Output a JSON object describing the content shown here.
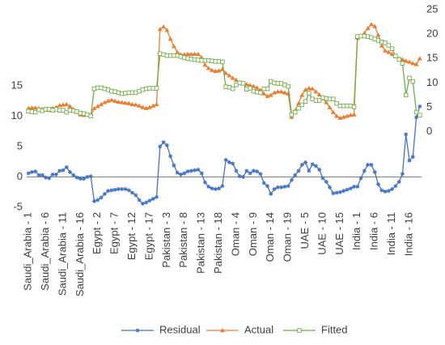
{
  "chart_data": {
    "type": "line",
    "categories": [
      "Saudi_Arabia - 1",
      null,
      null,
      null,
      null,
      "Saudi_Arabia - 6",
      null,
      null,
      null,
      null,
      "Saudi_Arabia - 11",
      null,
      null,
      null,
      null,
      "Saudi_Arabia - 16",
      null,
      null,
      null,
      null,
      "Egypt - 2",
      null,
      null,
      null,
      null,
      "Egypt - 7",
      null,
      null,
      null,
      null,
      "Egypt - 12",
      null,
      null,
      null,
      null,
      "Egypt - 17",
      null,
      null,
      null,
      null,
      "Pakistan - 3",
      null,
      null,
      null,
      null,
      "Pakistan - 8",
      null,
      null,
      null,
      null,
      "Pakistan - 13",
      null,
      null,
      null,
      null,
      "Pakistan - 18",
      null,
      null,
      null,
      null,
      "Oman - 4",
      null,
      null,
      null,
      null,
      "Oman - 9",
      null,
      null,
      null,
      null,
      "Oman - 14",
      null,
      null,
      null,
      null,
      "Oman - 19",
      null,
      null,
      null,
      null,
      "UAE - 5",
      null,
      null,
      null,
      null,
      "UAE - 10",
      null,
      null,
      null,
      null,
      "UAE - 15",
      null,
      null,
      null,
      null,
      "India - 1",
      null,
      null,
      null,
      null,
      "India - 6",
      null,
      null,
      null,
      null,
      "India - 11",
      null,
      null,
      null,
      null,
      "India - 16",
      null,
      null,
      null
    ],
    "series": [
      {
        "name": "Residual",
        "color": "#4472c4",
        "marker": "star",
        "values": [
          0.6,
          0.8,
          0.9,
          0.3,
          0.3,
          -0.1,
          -0.2,
          0.4,
          0.4,
          1.0,
          1.1,
          1.6,
          0.8,
          0.3,
          -0.1,
          -0.3,
          -0.3,
          0.0,
          0.1,
          -4.0,
          -3.8,
          -3.4,
          -2.8,
          -2.3,
          -2.2,
          -2.1,
          -2.0,
          -2.0,
          -2.0,
          -2.2,
          -2.6,
          -3.0,
          -3.8,
          -4.4,
          -4.2,
          -3.9,
          -3.6,
          -3.3,
          5.0,
          5.7,
          5.2,
          3.4,
          1.9,
          0.7,
          0.4,
          0.6,
          0.9,
          1.0,
          1.1,
          1.2,
          0.6,
          -0.9,
          -1.6,
          -1.9,
          -2.0,
          -1.9,
          -1.5,
          2.8,
          2.4,
          2.2,
          1.0,
          0.1,
          0.0,
          1.0,
          0.6,
          1.0,
          0.9,
          0.5,
          -1.0,
          -1.5,
          -2.8,
          -2.0,
          -1.7,
          -1.7,
          -1.6,
          -1.5,
          -0.5,
          0.3,
          1.0,
          2.0,
          2.4,
          1.0,
          2.1,
          1.8,
          1.2,
          -0.2,
          -0.8,
          -1.7,
          -2.7,
          -2.6,
          -2.5,
          -2.3,
          -2.1,
          -1.9,
          -1.6,
          -1.6,
          -0.2,
          1.0,
          2.0,
          2.0,
          0.8,
          -1.2,
          -2.2,
          -2.4,
          -2.3,
          -2.0,
          -1.5,
          -0.8,
          0.5,
          7.0,
          2.7,
          3.3,
          9.8,
          11.6
        ]
      },
      {
        "name": "Actual",
        "color": "#ed7d31",
        "marker": "triangle",
        "axis": "y2",
        "values": [
          4.8,
          4.9,
          4.9,
          4.8,
          4.6,
          4.5,
          4.4,
          4.8,
          5.0,
          5.4,
          5.5,
          5.6,
          5.2,
          4.6,
          4.0,
          3.5,
          3.4,
          3.5,
          3.3,
          4.8,
          5.2,
          5.6,
          6.0,
          6.3,
          6.5,
          6.3,
          6.1,
          6.0,
          5.9,
          5.8,
          5.6,
          5.5,
          5.3,
          5.0,
          4.8,
          5.0,
          5.3,
          5.6,
          21.0,
          21.5,
          20.8,
          19.0,
          17.5,
          16.3,
          15.8,
          15.8,
          15.9,
          15.9,
          15.9,
          15.9,
          15.2,
          13.7,
          13.0,
          12.6,
          12.4,
          12.5,
          12.8,
          12.0,
          11.5,
          11.0,
          10.6,
          10.1,
          9.9,
          9.7,
          9.5,
          9.3,
          9.0,
          8.5,
          7.8,
          7.3,
          7.5,
          8.0,
          8.2,
          8.2,
          8.0,
          7.8,
          3.0,
          4.3,
          5.8,
          7.5,
          8.6,
          8.9,
          8.8,
          8.2,
          7.6,
          6.8,
          6.0,
          5.0,
          4.0,
          3.2,
          2.8,
          3.0,
          3.2,
          3.4,
          3.5,
          19.2,
          19.6,
          20.2,
          21.2,
          22.0,
          21.6,
          19.8,
          17.6,
          16.6,
          16.3,
          15.9,
          15.5,
          15.0,
          14.8,
          14.5,
          14.3,
          14.0,
          13.8,
          15.0
        ]
      },
      {
        "name": "Fitted",
        "color": "#70ad47",
        "marker": "square",
        "axis": "y2",
        "values": [
          4.2,
          4.1,
          4.0,
          4.5,
          4.3,
          4.6,
          4.6,
          4.4,
          4.6,
          4.4,
          4.4,
          4.0,
          4.4,
          4.3,
          4.1,
          3.8,
          3.7,
          3.5,
          3.2,
          8.8,
          9.0,
          9.0,
          8.8,
          8.6,
          8.3,
          8.2,
          8.0,
          7.8,
          7.9,
          8.0,
          8.0,
          8.0,
          8.3,
          8.6,
          8.8,
          8.9,
          8.9,
          8.9,
          16.0,
          15.8,
          15.6,
          15.6,
          15.6,
          15.6,
          15.4,
          15.2,
          15.0,
          14.9,
          14.8,
          14.7,
          14.6,
          14.6,
          14.6,
          14.5,
          14.4,
          14.4,
          14.3,
          9.2,
          9.1,
          8.8,
          9.6,
          10.0,
          9.9,
          8.7,
          8.9,
          8.3,
          8.1,
          8.0,
          8.8,
          8.8,
          10.3,
          10.0,
          9.9,
          9.9,
          9.6,
          9.3,
          3.5,
          4.0,
          4.8,
          5.5,
          6.2,
          7.9,
          6.7,
          6.4,
          6.4,
          7.0,
          6.8,
          6.7,
          6.7,
          5.8,
          5.3,
          5.3,
          5.3,
          5.3,
          5.1,
          19.5,
          19.6,
          19.6,
          19.5,
          19.3,
          19.0,
          18.7,
          18.4,
          18.2,
          17.7,
          17.0,
          15.5,
          14.8,
          14.0,
          7.5,
          11.0,
          10.3,
          4.0,
          3.4
        ]
      }
    ],
    "ylim": [
      -5,
      27.5
    ],
    "yticks": [
      -5,
      0,
      5,
      10,
      15
    ],
    "y2lim": [
      -15.5,
      25
    ],
    "y2ticks": [
      0,
      5,
      10,
      15,
      20,
      25
    ],
    "legend": "bottom"
  }
}
